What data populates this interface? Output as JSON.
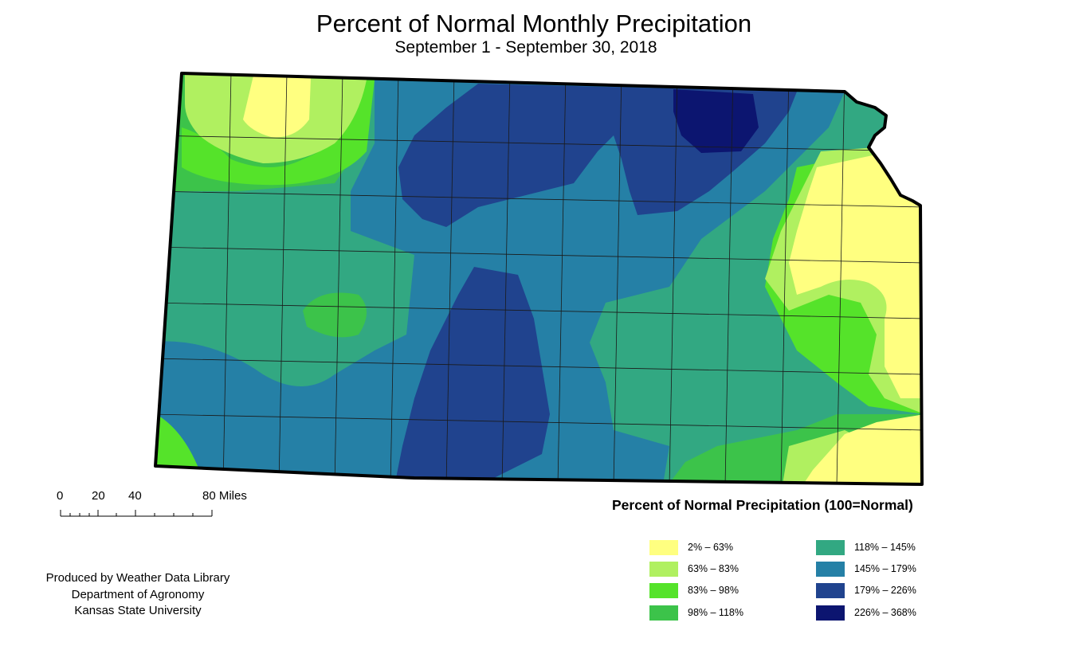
{
  "header": {
    "title": "Percent of Normal Monthly Precipitation",
    "subtitle": "September 1 - September 30, 2018"
  },
  "scale": {
    "ticks": [
      "0",
      "20",
      "40",
      "80 Miles"
    ]
  },
  "legend": {
    "title": "Percent of Normal Precipitation (100=Normal)",
    "items": [
      {
        "label": "2% – 63%",
        "color": "#ffff80"
      },
      {
        "label": "63% – 83%",
        "color": "#b0f060"
      },
      {
        "label": "83% – 98%",
        "color": "#55e32a"
      },
      {
        "label": "98% – 118%",
        "color": "#3cc34a"
      },
      {
        "label": "118% – 145%",
        "color": "#32a882"
      },
      {
        "label": "145% – 179%",
        "color": "#2580a6"
      },
      {
        "label": "179% – 226%",
        "color": "#20438e"
      },
      {
        "label": "226% – 368%",
        "color": "#0c1570"
      }
    ]
  },
  "credits": {
    "line1": "Produced by Weather Data Library",
    "line2": "Department of Agronomy",
    "line3": "Kansas State University"
  },
  "colors": {
    "border": "#000000",
    "county_lines": "#1a1a1a"
  }
}
